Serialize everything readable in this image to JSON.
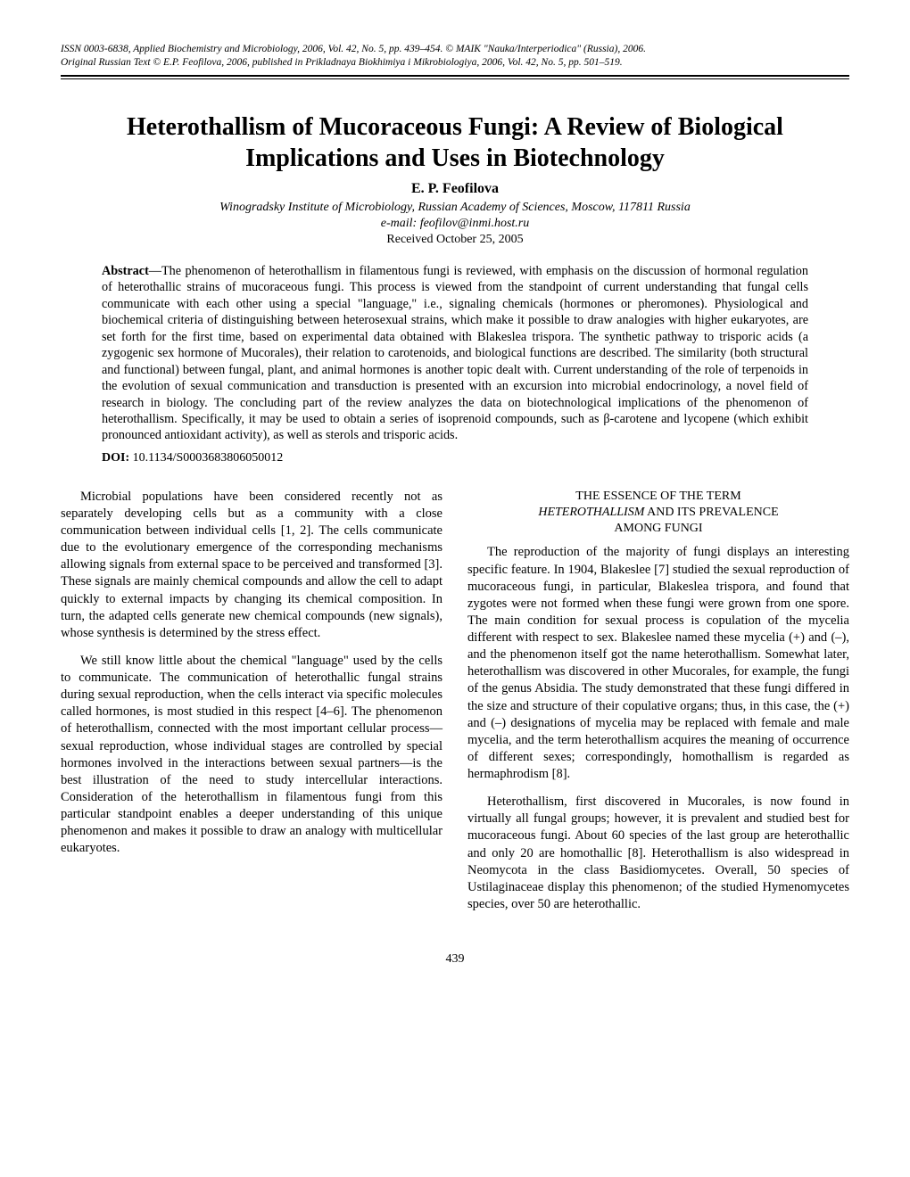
{
  "journal_meta": {
    "line1": "ISSN 0003-6838, Applied Biochemistry and Microbiology, 2006, Vol. 42, No. 5, pp. 439–454. © MAIK \"Nauka/Interperiodica\" (Russia), 2006.",
    "line2": "Original Russian Text © E.P. Feofilova, 2006, published in Prikladnaya Biokhimiya i Mikrobiologiya, 2006, Vol. 42, No. 5, pp. 501–519."
  },
  "title": "Heterothallism of Mucoraceous Fungi: A Review of Biological Implications and Uses in Biotechnology",
  "author": "E. P. Feofilova",
  "affiliation": "Winogradsky Institute of Microbiology, Russian Academy of Sciences, Moscow, 117811 Russia",
  "email": "e-mail: feofilov@inmi.host.ru",
  "received": "Received October 25, 2005",
  "abstract_label": "Abstract",
  "abstract_text": "—The phenomenon of heterothallism in filamentous fungi is reviewed, with emphasis on the discussion of hormonal regulation of heterothallic strains of mucoraceous fungi. This process is viewed from the standpoint of current understanding that fungal cells communicate with each other using a special \"language,\" i.e., signaling chemicals (hormones or pheromones). Physiological and biochemical criteria of distinguishing between heterosexual strains, which make it possible to draw analogies with higher eukaryotes, are set forth for the first time, based on experimental data obtained with Blakeslea trispora. The synthetic pathway to trisporic acids (a zygogenic sex hormone of Mucorales), their relation to carotenoids, and biological functions are described. The similarity (both structural and functional) between fungal, plant, and animal hormones is another topic dealt with. Current understanding of the role of terpenoids in the evolution of sexual communication and transduction is presented with an excursion into microbial endocrinology, a novel field of research in biology. The concluding part of the review analyzes the data on biotechnological implications of the phenomenon of heterothallism. Specifically, it may be used to obtain a series of isoprenoid compounds, such as β-carotene and lycopene (which exhibit pronounced antioxidant activity), as well as sterols and trisporic acids.",
  "doi_label": "DOI:",
  "doi_value": "10.1134/S0003683806050012",
  "left_column": {
    "p1": "Microbial populations have been considered recently not as separately developing cells but as a community with a close communication between individual cells [1, 2]. The cells communicate due to the evolutionary emergence of the corresponding mechanisms allowing signals from external space to be perceived and transformed [3]. These signals are mainly chemical compounds and allow the cell to adapt quickly to external impacts by changing its chemical composition. In turn, the adapted cells generate new chemical compounds (new signals), whose synthesis is determined by the stress effect.",
    "p2": "We still know little about the chemical \"language\" used by the cells to communicate. The communication of heterothallic fungal strains during sexual reproduction, when the cells interact via specific molecules called hormones, is most studied in this respect [4–6]. The phenomenon of heterothallism, connected with the most important cellular process—sexual reproduction, whose individual stages are controlled by special hormones involved in the interactions between sexual partners—is the best illustration of the need to study intercellular interactions. Consideration of the heterothallism in filamentous fungi from this particular standpoint enables a deeper understanding of this unique phenomenon and makes it possible to draw an analogy with multicellular eukaryotes."
  },
  "right_column": {
    "heading_line1": "THE ESSENCE OF THE TERM",
    "heading_italic": "HETEROTHALLISM",
    "heading_line2_rest": " AND ITS PREVALENCE",
    "heading_line3": "AMONG FUNGI",
    "p1": "The reproduction of the majority of fungi displays an interesting specific feature. In 1904, Blakeslee [7] studied the sexual reproduction of mucoraceous fungi, in particular, Blakeslea trispora, and found that zygotes were not formed when these fungi were grown from one spore. The main condition for sexual process is copulation of the mycelia different with respect to sex. Blakeslee named these mycelia (+) and (–), and the phenomenon itself got the name heterothallism. Somewhat later, heterothallism was discovered in other Mucorales, for example, the fungi of the genus Absidia. The study demonstrated that these fungi differed in the size and structure of their copulative organs; thus, in this case, the (+) and (–) designations of mycelia may be replaced with female and male mycelia, and the term heterothallism acquires the meaning of occurrence of different sexes; correspondingly, homothallism is regarded as hermaphrodism [8].",
    "p2": "Heterothallism, first discovered in Mucorales, is now found in virtually all fungal groups; however, it is prevalent and studied best for mucoraceous fungi. About 60 species of the last group are heterothallic and only 20 are homothallic [8]. Heterothallism is also widespread in Neomycota in the class Basidiomycetes. Overall, 50 species of Ustilaginaceae display this phenomenon; of the studied Hymenomycetes species, over 50 are heterothallic."
  },
  "page_number": "439"
}
